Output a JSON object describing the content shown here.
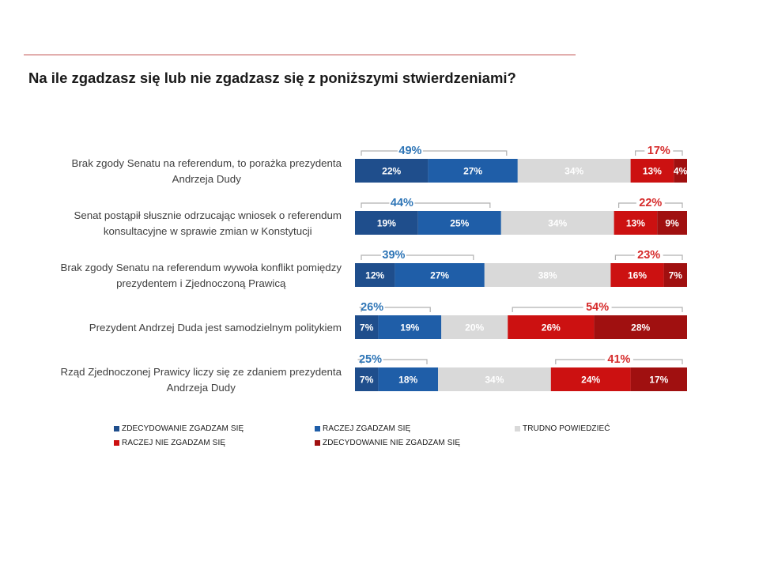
{
  "title": "Na ile zgadzasz się lub nie zgadzasz się z poniższymi stwierdzeniami?",
  "colors": {
    "strongly_agree": "#1f4e8c",
    "rather_agree": "#1f5ea8",
    "hard_to_say": "#d9d9d9",
    "rather_disagree": "#cc1111",
    "strongly_disagree": "#a01010",
    "agree_total_text": "#2e75b6",
    "disagree_total_text": "#d62b2b",
    "bracket": "#b0b0b0"
  },
  "chart_data": {
    "type": "bar",
    "orientation": "horizontal-stacked-100",
    "title": "Na ile zgadzasz się lub nie zgadzasz się z poniższymi stwierdzeniami?",
    "categories": [
      [
        "Brak zgody Senatu na referendum, to porażka prezydenta",
        "Andrzeja Dudy"
      ],
      [
        "Senat postąpił słusznie odrzucając wniosek o referendum",
        "konsultacyjne w sprawie zmian w Konstytucji"
      ],
      [
        "Brak zgody Senatu  na referendum wywoła konflikt pomiędzy",
        "prezydentem i Zjednoczoną Prawicą"
      ],
      [
        "Prezydent Andrzej Duda jest samodzielnym politykiem"
      ],
      [
        "Rząd Zjednoczonej Prawicy liczy się ze zdaniem prezydenta",
        "Andrzeja Dudy"
      ]
    ],
    "series": [
      {
        "name": "ZDECYDOWANIE ZGADZAM SIĘ",
        "key": "strongly_agree",
        "values": [
          22,
          19,
          12,
          7,
          7
        ],
        "labels": [
          "22%",
          "19%",
          "12%",
          "7%",
          "7%"
        ]
      },
      {
        "name": "RACZEJ ZGADZAM SIĘ",
        "key": "rather_agree",
        "values": [
          27,
          25,
          27,
          19,
          18
        ],
        "labels": [
          "27%",
          "25%",
          "27%",
          "19%",
          "18%"
        ]
      },
      {
        "name": "TRUDNO POWIEDZIEĆ",
        "key": "hard_to_say",
        "values": [
          34,
          34,
          38,
          20,
          34
        ],
        "labels": [
          "34%",
          "34%",
          "38%",
          "20%",
          "34%"
        ]
      },
      {
        "name": "RACZEJ NIE ZGADZAM SIĘ",
        "key": "rather_disagree",
        "values": [
          13,
          13,
          16,
          26,
          24
        ],
        "labels": [
          "13%",
          "13%",
          "16%",
          "26%",
          "24%"
        ]
      },
      {
        "name": "ZDECYDOWANIE NIE ZGADZAM SIĘ",
        "key": "strongly_disagree",
        "values": [
          4,
          9,
          7,
          28,
          17
        ],
        "labels": [
          "4%",
          "9%",
          "7%",
          "28%",
          "17%"
        ]
      }
    ],
    "agree_totals": [
      "49%",
      "44%",
      "39%",
      "26%",
      "25%"
    ],
    "disagree_totals": [
      "17%",
      "22%",
      "23%",
      "54%",
      "41%"
    ],
    "xlim": [
      0,
      100
    ],
    "legend_position": "bottom"
  }
}
